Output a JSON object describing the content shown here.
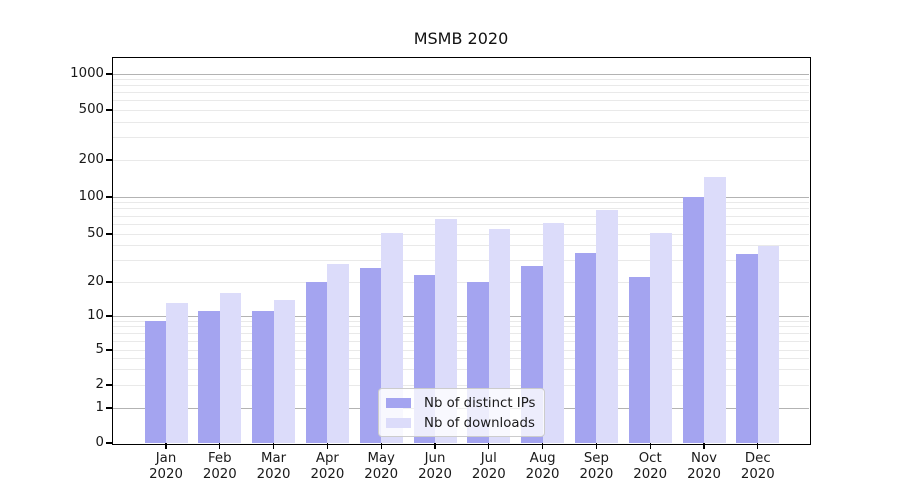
{
  "chart_data": {
    "type": "bar",
    "title": "MSMB 2020",
    "categories": [
      "Jan 2020",
      "Feb 2020",
      "Mar 2020",
      "Apr 2020",
      "May 2020",
      "Jun 2020",
      "Jul 2020",
      "Aug 2020",
      "Sep 2020",
      "Oct 2020",
      "Nov 2020",
      "Dec 2020"
    ],
    "series": [
      {
        "name": "Nb of distinct IPs",
        "color": "#a4a4f0",
        "values": [
          9,
          11,
          11,
          20,
          26,
          23,
          20,
          27,
          35,
          22,
          100,
          34
        ]
      },
      {
        "name": "Nb of downloads",
        "color": "#dcdcfa",
        "values": [
          13,
          16,
          14,
          28,
          51,
          66,
          55,
          61,
          78,
          51,
          145,
          40
        ]
      }
    ],
    "yscale": "log-with-zero",
    "ylim": [
      0,
      1400
    ],
    "ytick_labels": [
      1000,
      500,
      200,
      100,
      50,
      20,
      10,
      5,
      2,
      1,
      0
    ],
    "grid": "on",
    "grid_major_color": "#b3b3b3",
    "grid_minor_color": "#e9e9e9",
    "legend_position": "lower center",
    "xlabel": "",
    "ylabel": ""
  }
}
